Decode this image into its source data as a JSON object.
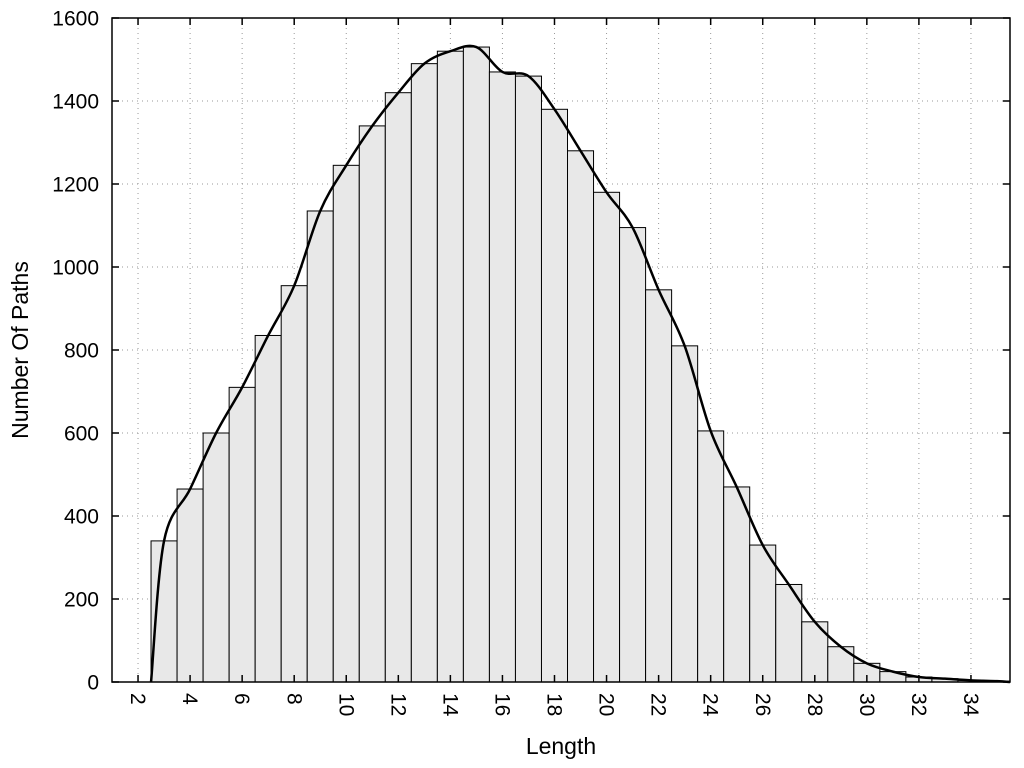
{
  "chart_data": {
    "type": "bar",
    "title": "",
    "xlabel": "Length",
    "ylabel": "Number Of Paths",
    "xlim": [
      1,
      35.5
    ],
    "ylim": [
      0,
      1600
    ],
    "x_ticks": [
      2,
      4,
      6,
      8,
      10,
      12,
      14,
      16,
      18,
      20,
      22,
      24,
      26,
      28,
      30,
      32,
      34
    ],
    "x_tick_labels": [
      "2",
      "4",
      "6",
      "8",
      "10",
      "12",
      "14",
      "16",
      "18",
      "20",
      "22",
      "24",
      "26",
      "28",
      "30",
      "32",
      "34"
    ],
    "y_ticks": [
      0,
      200,
      400,
      600,
      800,
      1000,
      1200,
      1400,
      1600
    ],
    "y_tick_labels": [
      "0",
      "200",
      "400",
      "600",
      "800",
      "1000",
      "1200",
      "1400",
      "1600"
    ],
    "grid": true,
    "legend": false,
    "bar_fill": "#e8e8e8",
    "bar_stroke": "#000000",
    "line_color": "#000000",
    "grid_color": "#999999",
    "x": [
      3,
      4,
      5,
      6,
      7,
      8,
      9,
      10,
      11,
      12,
      13,
      14,
      15,
      16,
      17,
      18,
      19,
      20,
      21,
      22,
      23,
      24,
      25,
      26,
      27,
      28,
      29,
      30,
      31,
      32,
      33,
      34,
      35
    ],
    "values": [
      340,
      465,
      600,
      710,
      835,
      955,
      1135,
      1245,
      1340,
      1420,
      1490,
      1520,
      1530,
      1470,
      1460,
      1380,
      1280,
      1180,
      1095,
      945,
      810,
      605,
      470,
      330,
      235,
      145,
      85,
      45,
      25,
      12,
      8,
      4,
      2
    ],
    "curve": [
      [
        2.5,
        0
      ],
      [
        3,
        340
      ],
      [
        4,
        465
      ],
      [
        5,
        600
      ],
      [
        6,
        710
      ],
      [
        7,
        835
      ],
      [
        8,
        955
      ],
      [
        9,
        1135
      ],
      [
        10,
        1245
      ],
      [
        11,
        1340
      ],
      [
        12,
        1420
      ],
      [
        13,
        1490
      ],
      [
        14,
        1520
      ],
      [
        15,
        1530
      ],
      [
        16,
        1470
      ],
      [
        17,
        1460
      ],
      [
        18,
        1380
      ],
      [
        19,
        1280
      ],
      [
        20,
        1180
      ],
      [
        21,
        1095
      ],
      [
        22,
        945
      ],
      [
        23,
        810
      ],
      [
        24,
        605
      ],
      [
        25,
        470
      ],
      [
        26,
        330
      ],
      [
        27,
        235
      ],
      [
        28,
        145
      ],
      [
        29,
        85
      ],
      [
        30,
        45
      ],
      [
        31,
        25
      ],
      [
        32,
        12
      ],
      [
        33,
        8
      ],
      [
        34,
        4
      ],
      [
        35,
        2
      ],
      [
        35.5,
        0
      ]
    ]
  }
}
